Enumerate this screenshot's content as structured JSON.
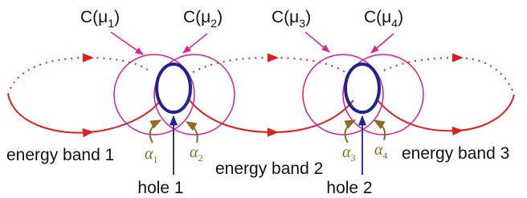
{
  "contours": [
    {
      "symbol": "C(μ",
      "index": "1",
      "close": ")"
    },
    {
      "symbol": "C(μ",
      "index": "2",
      "close": ")"
    },
    {
      "symbol": "C(μ",
      "index": "3",
      "close": ")"
    },
    {
      "symbol": "C(μ",
      "index": "4",
      "close": ")"
    }
  ],
  "bands": [
    "energy band 1",
    "energy band 2",
    "energy band 3"
  ],
  "holes": [
    "hole 1",
    "hole 2"
  ],
  "angles": [
    {
      "symbol": "α",
      "index": "1"
    },
    {
      "symbol": "α",
      "index": "2"
    },
    {
      "symbol": "α",
      "index": "3"
    },
    {
      "symbol": "α",
      "index": "4"
    }
  ]
}
